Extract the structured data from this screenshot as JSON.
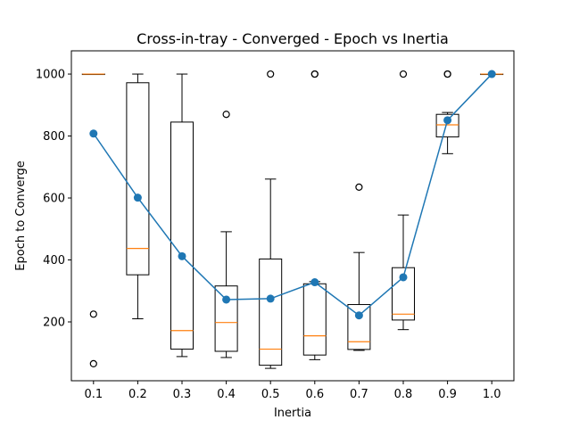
{
  "chart_data": {
    "type": "box",
    "title": "Cross-in-tray - Converged - Epoch vs Inertia",
    "xlabel": "Inertia",
    "ylabel": "Epoch to Converge",
    "ylim": [
      10,
      1075
    ],
    "yticks": [
      200,
      400,
      600,
      800,
      1000
    ],
    "categories": [
      "0.1",
      "0.2",
      "0.3",
      "0.4",
      "0.5",
      "0.6",
      "0.7",
      "0.8",
      "0.9",
      "1.0"
    ],
    "boxes": [
      {
        "category": "0.1",
        "whisker_low": 1000,
        "q1": 1000,
        "median": 1000,
        "q3": 1000,
        "whisker_high": 1000,
        "outliers": [
          225,
          65
        ]
      },
      {
        "category": "0.2",
        "whisker_low": 210,
        "q1": 352,
        "median": 437,
        "q3": 972,
        "whisker_high": 1000,
        "outliers": []
      },
      {
        "category": "0.3",
        "whisker_low": 88,
        "q1": 112,
        "median": 172,
        "q3": 845,
        "whisker_high": 1000,
        "outliers": []
      },
      {
        "category": "0.4",
        "whisker_low": 85,
        "q1": 105,
        "median": 198,
        "q3": 316,
        "whisker_high": 491,
        "outliers": [
          870
        ]
      },
      {
        "category": "0.5",
        "whisker_low": 50,
        "q1": 60,
        "median": 112,
        "q3": 403,
        "whisker_high": 661,
        "outliers": [
          1000
        ]
      },
      {
        "category": "0.6",
        "whisker_low": 78,
        "q1": 93,
        "median": 155,
        "q3": 323,
        "whisker_high": 330,
        "outliers": [
          1000,
          1000
        ]
      },
      {
        "category": "0.7",
        "whisker_low": 108,
        "q1": 111,
        "median": 136,
        "q3": 256,
        "whisker_high": 424,
        "outliers": [
          635
        ]
      },
      {
        "category": "0.8",
        "whisker_low": 175,
        "q1": 206,
        "median": 225,
        "q3": 375,
        "whisker_high": 545,
        "outliers": [
          1000
        ]
      },
      {
        "category": "0.9",
        "whisker_low": 743,
        "q1": 797,
        "median": 836,
        "q3": 870,
        "whisker_high": 876,
        "outliers": [
          1000,
          1000
        ]
      },
      {
        "category": "1.0",
        "whisker_low": 1000,
        "q1": 1000,
        "median": 1000,
        "q3": 1000,
        "whisker_high": 1000,
        "outliers": []
      }
    ],
    "mean_line": {
      "values": [
        808,
        601,
        412,
        272,
        275,
        328,
        221,
        344,
        851,
        1000
      ]
    },
    "colors": {
      "median": "#ff7f0e",
      "mean": "#1f77b4",
      "box": "#000000"
    },
    "grid": false
  }
}
